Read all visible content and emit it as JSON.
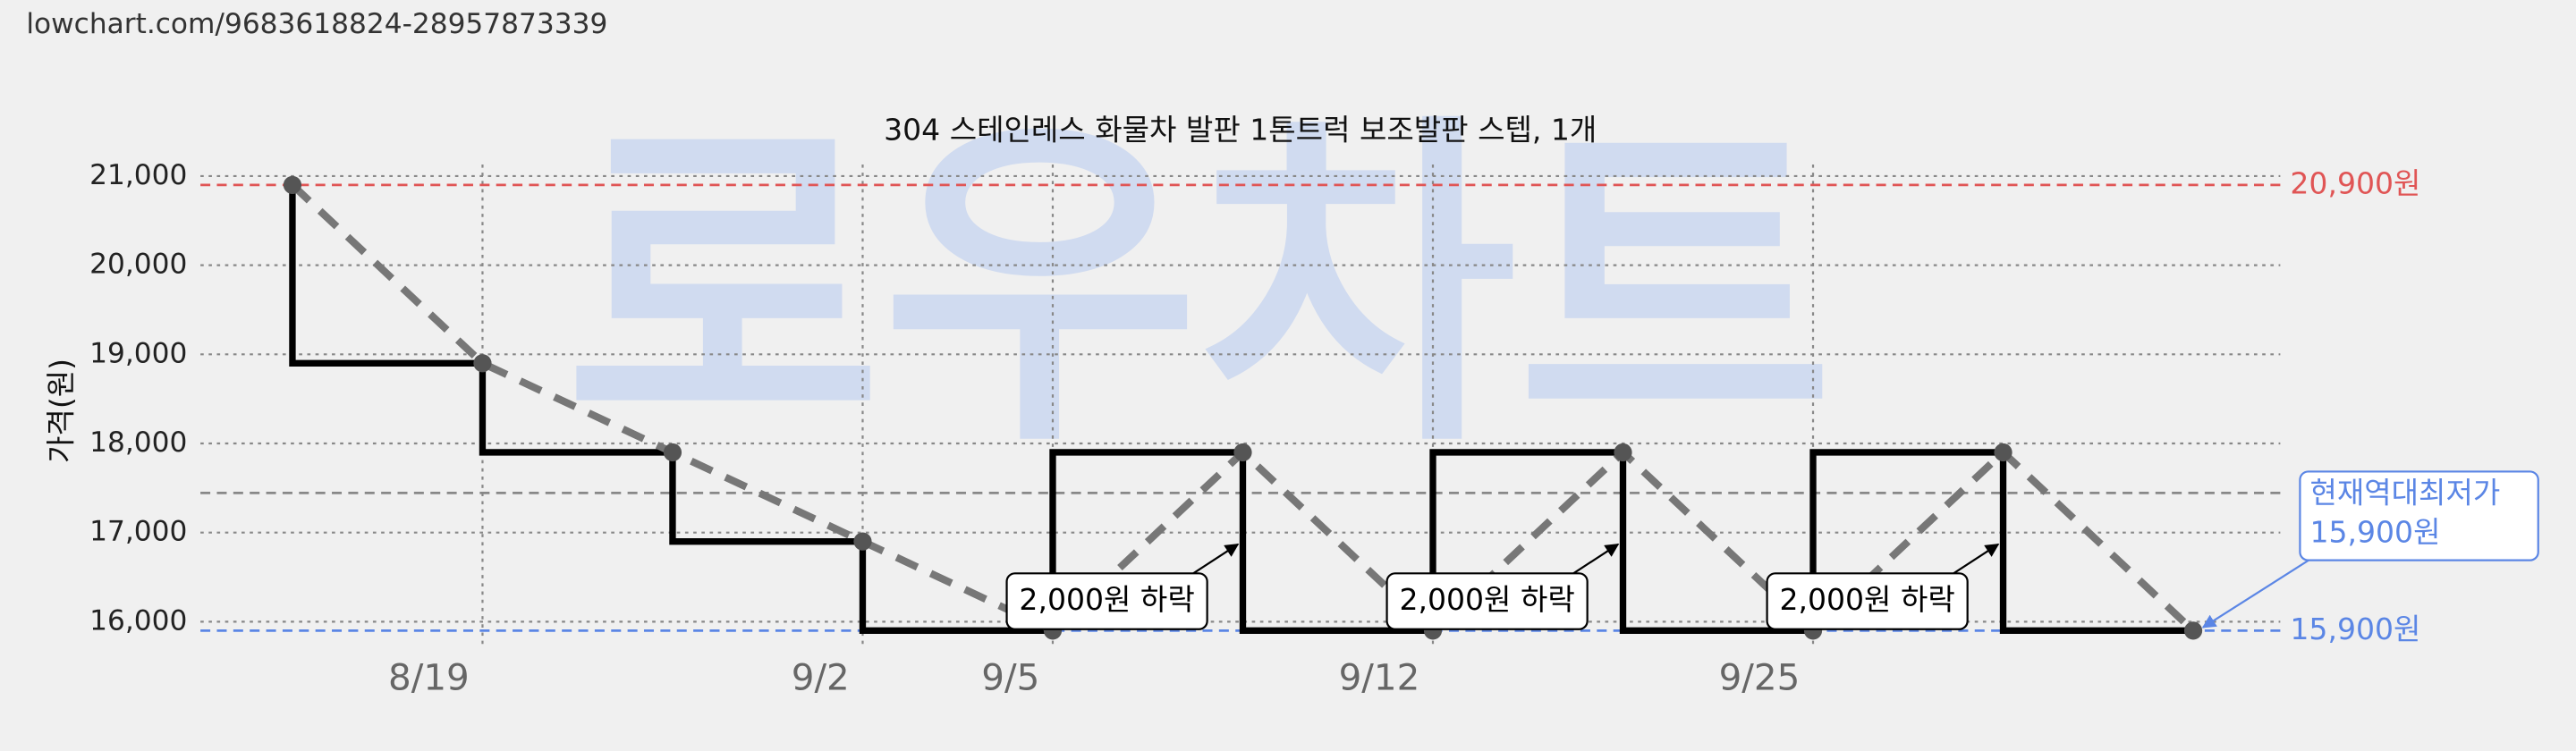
{
  "url": "lowchart.com/9683618824-28957873339",
  "watermark": "로우차트",
  "chart_data": {
    "type": "line",
    "title": "304 스테인레스 화물차 발판 1톤트럭 보조발판 스텝, 1개",
    "y_label": "가격(원)",
    "categories": [
      null,
      "8/19",
      null,
      "9/2",
      "9/5",
      null,
      "9/12",
      null,
      "9/25",
      null,
      null
    ],
    "series": [
      {
        "color": "#777777",
        "step_color": "#000000",
        "values": [
          20900,
          18900,
          17900,
          16900,
          15900,
          17900,
          15900,
          17900,
          15900,
          17900,
          15900
        ]
      }
    ],
    "ylim": [
      15750,
      21130
    ],
    "yticks": [
      {
        "value": 16000,
        "label": "16,000"
      },
      {
        "value": 17000,
        "label": "17,000"
      },
      {
        "value": 18000,
        "label": "18,000"
      },
      {
        "value": 19000,
        "label": "19,000"
      },
      {
        "value": 20000,
        "label": "20,000"
      },
      {
        "value": 21000,
        "label": "21,000"
      }
    ],
    "grid": true,
    "reference_lines": [
      {
        "value": 20900,
        "color": "#e05555",
        "label": "20,900원"
      },
      {
        "value": 15900,
        "color": "#5b86e5",
        "label": "15,900원"
      },
      {
        "value": 17445,
        "color": "#888888"
      }
    ],
    "annotations": [
      "2,000원 하락",
      "2,000원 하락",
      "2,000원 하락"
    ],
    "callout": [
      "현재역대최저가",
      "15,900원"
    ]
  }
}
